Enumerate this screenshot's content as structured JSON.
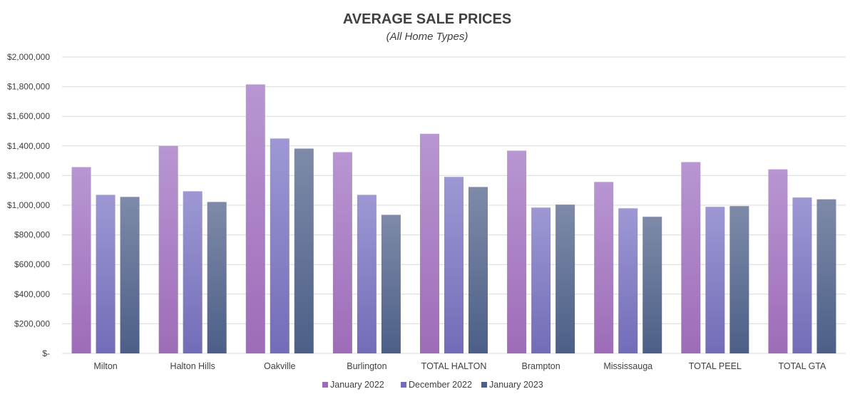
{
  "chart_data": {
    "type": "bar",
    "title": "AVERAGE SALE PRICES",
    "subtitle": "(All Home Types)",
    "xlabel": "",
    "ylabel": "",
    "ylim": [
      0,
      2000000
    ],
    "yticks": [
      0,
      200000,
      400000,
      600000,
      800000,
      1000000,
      1200000,
      1400000,
      1600000,
      1800000,
      2000000
    ],
    "ytick_labels": [
      "$-",
      "$200,000",
      "$400,000",
      "$600,000",
      "$800,000",
      "$1,000,000",
      "$1,200,000",
      "$1,400,000",
      "$1,600,000",
      "$1,800,000",
      "$2,000,000"
    ],
    "grid": true,
    "legend_position": "bottom",
    "categories": [
      "Milton",
      "Halton Hills",
      "Oakville",
      "Burlington",
      "TOTAL HALTON",
      "Brampton",
      "Mississauga",
      "TOTAL PEEL",
      "TOTAL GTA"
    ],
    "series": [
      {
        "name": "January 2022",
        "colors": [
          "#b896d2",
          "#9e6cb8"
        ],
        "values": [
          1257000,
          1400000,
          1815000,
          1358000,
          1482000,
          1368000,
          1157000,
          1291000,
          1242000
        ]
      },
      {
        "name": "December 2022",
        "colors": [
          "#9d98d4",
          "#736cb8"
        ],
        "values": [
          1070000,
          1094000,
          1450000,
          1070000,
          1191000,
          984000,
          979000,
          989000,
          1052000
        ]
      },
      {
        "name": "January 2023",
        "colors": [
          "#7e8aa8",
          "#4c5f88"
        ],
        "values": [
          1056000,
          1022000,
          1382000,
          935000,
          1123000,
          1004000,
          922000,
          994000,
          1040000
        ]
      }
    ]
  }
}
